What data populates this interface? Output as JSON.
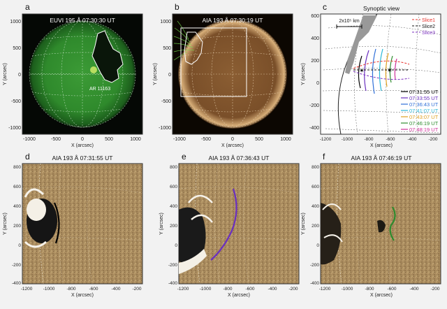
{
  "figure": {
    "panels": [
      {
        "letter": "a",
        "title": "EUVI 195 Å 07:30:30 UT",
        "xlabel": "X (arcsec)",
        "ylabel": "Y (arcsec)",
        "xticks": [
          "-1000",
          "-500",
          "0",
          "500",
          "1000"
        ],
        "yticks": [
          "1000",
          "500",
          "0",
          "-500",
          "-1000"
        ],
        "annotation": "AR 11163"
      },
      {
        "letter": "b",
        "title": "AIA 193 Å 07:30:19 UT",
        "xlabel": "X (arcsec)",
        "ylabel": "Y (arcsec)",
        "xticks": [
          "-1000",
          "-500",
          "0",
          "500",
          "1000"
        ],
        "yticks": [
          "1000",
          "500",
          "0",
          "-500",
          "-1000"
        ]
      },
      {
        "letter": "c",
        "title": "Synoptic view",
        "xlabel": "X (arcsec)",
        "ylabel": "Y (arcsec)",
        "xticks": [
          "-1200",
          "-1000",
          "-800",
          "-600",
          "-400",
          "-200"
        ],
        "yticks": [
          "600",
          "400",
          "200",
          "0",
          "-200",
          "-400"
        ],
        "scale_label": "2x10⁵ km"
      },
      {
        "letter": "d",
        "title": "AIA 193 Å 07:31:55 UT",
        "xlabel": "X (arcsec)",
        "ylabel": "Y (arcsec)",
        "xticks": [
          "-1200",
          "-1000",
          "-800",
          "-600",
          "-400",
          "-200"
        ],
        "yticks": [
          "800",
          "600",
          "400",
          "200",
          "0",
          "-200",
          "-400"
        ]
      },
      {
        "letter": "e",
        "title": "AIA 193 Å 07:36:43 UT",
        "xlabel": "X (arcsec)",
        "ylabel": "Y (arcsec)",
        "xticks": [
          "-1200",
          "-1000",
          "-800",
          "-600",
          "-400",
          "-200"
        ],
        "yticks": [
          "800",
          "600",
          "400",
          "200",
          "0",
          "-200",
          "-400"
        ]
      },
      {
        "letter": "f",
        "title": "AIA 193 Å 07:46:19 UT",
        "xlabel": "X (arcsec)",
        "ylabel": "Y (arcsec)",
        "xticks": [
          "-1200",
          "-1000",
          "-800",
          "-600",
          "-400",
          "-200"
        ],
        "yticks": [
          "800",
          "600",
          "400",
          "200",
          "0",
          "-200",
          "-400"
        ]
      }
    ],
    "slice_legend": [
      {
        "label": "Slice1",
        "color": "#e8302a"
      },
      {
        "label": "Slice2",
        "color": "#111111"
      },
      {
        "label": "Slice3",
        "color": "#7b2fbf"
      }
    ],
    "time_legend": [
      {
        "label": "07:31:55 UT",
        "color": "#000000"
      },
      {
        "label": "07:33:55 UT",
        "color": "#6a2fbf"
      },
      {
        "label": "07:36:43 UT",
        "color": "#2f6fd8"
      },
      {
        "label": "07:41:07 UT",
        "color": "#2ab8d8"
      },
      {
        "label": "07:43:07 UT",
        "color": "#e0a020"
      },
      {
        "label": "07:46:19 UT",
        "color": "#2e8b2e"
      },
      {
        "label": "07:48:19 UT",
        "color": "#d0309a"
      }
    ]
  },
  "colors": {
    "euvi": "#1f7a1f",
    "aia": "#8a5a2a",
    "diff_bg": "#a88a5c"
  }
}
